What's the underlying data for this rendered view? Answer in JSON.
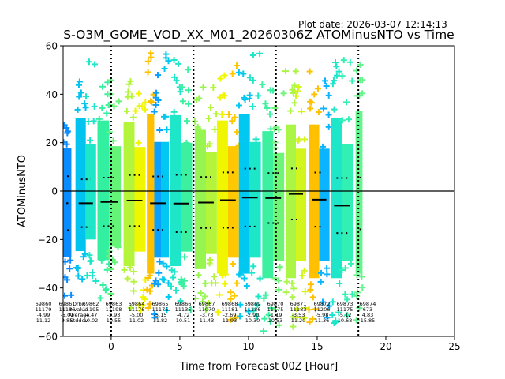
{
  "plot_date": "Plot date: 2026-03-07 12:14:13",
  "chart_data": {
    "type": "scatter",
    "title": "S-O3M_GOME_VOD_XX_M01_20260306Z ATOMinusNTO vs Time",
    "xlabel": "Time from Forecast 00Z [Hour]",
    "ylabel": "ATOMinusNTO",
    "xlim": [
      -3.5,
      25
    ],
    "ylim": [
      -60,
      60
    ],
    "xticks": [
      "0",
      "5",
      "10",
      "15",
      "20",
      "25"
    ],
    "yticks": [
      "60",
      "40",
      "20",
      "0",
      "−20",
      "−40",
      "−60"
    ],
    "marker": "+",
    "zero_line": 0,
    "forecast_boundaries": [
      0,
      6,
      12,
      18
    ],
    "stat_labels": [
      "Orbit",
      "Nvalue",
      "Average",
      "Stddev"
    ],
    "orbits": [
      {
        "orbit": "69860",
        "nvalue": "11179",
        "average": "-4.99",
        "stddev": "11.12",
        "x_start": -3.5,
        "x_end": -2.9,
        "colors": [
          "#0a8cff"
        ],
        "y_max": 32,
        "y_min": -44
      },
      {
        "orbit": "69861",
        "nvalue": "11186",
        "average": "-5.01",
        "stddev": "9.85",
        "x_start": -2.6,
        "x_end": -1.1,
        "colors": [
          "#00c3f0",
          "#1ee6c8"
        ],
        "y_max": 55,
        "y_min": -40
      },
      {
        "orbit": "69862",
        "nvalue": "11195",
        "average": "-4.47",
        "stddev": "10.02",
        "x_start": -1.0,
        "x_end": 0.7,
        "colors": [
          "#32f0a0",
          "#64f578"
        ],
        "y_max": 53,
        "y_min": -46
      },
      {
        "orbit": "69863",
        "nvalue": "11198",
        "average": "-3.93",
        "stddev": "10.55",
        "x_start": 0.9,
        "x_end": 2.5,
        "colors": [
          "#b4f53c",
          "#f0f500"
        ],
        "y_max": 52,
        "y_min": -50
      },
      {
        "orbit": "69864",
        "nvalue": "11176",
        "average": "-5.00",
        "stddev": "11.02",
        "x_start": 2.6,
        "x_end": 4.2,
        "colors": [
          "#ffc000",
          "#0aa0ff",
          "#00c8f0"
        ],
        "y_max": 58,
        "y_min": -55
      },
      {
        "orbit": "69865",
        "nvalue": "11176",
        "average": "-5.15",
        "stddev": "11.82",
        "x_start": 4.3,
        "x_end": 5.9,
        "colors": [
          "#1ee6c8",
          "#3cf0a0"
        ],
        "y_max": 57,
        "y_min": -50
      },
      {
        "orbit": "69866",
        "nvalue": "11135",
        "average": "-4.72",
        "stddev": "10.51",
        "x_start": 6.1,
        "x_end": 7.7,
        "colors": [
          "#96f550",
          "#b4f53c"
        ],
        "y_max": 46,
        "y_min": -52
      },
      {
        "orbit": "69867",
        "nvalue": "11070",
        "average": "-3.73",
        "stddev": "11.43",
        "x_start": 7.7,
        "x_end": 9.3,
        "colors": [
          "#f0f500",
          "#ffc800"
        ],
        "y_max": 53,
        "y_min": -55
      },
      {
        "orbit": "69868",
        "nvalue": "11181",
        "average": "-2.69",
        "stddev": "11.93",
        "x_start": 9.3,
        "x_end": 10.9,
        "colors": [
          "#00c8f0",
          "#1ee6c8"
        ],
        "y_max": 58,
        "y_min": -55
      },
      {
        "orbit": "69869",
        "nvalue": "11186",
        "average": "-2.90",
        "stddev": "10.30",
        "x_start": 11.0,
        "x_end": 12.6,
        "colors": [
          "#3cf0a0",
          "#6ef578"
        ],
        "y_max": 45,
        "y_min": -58
      },
      {
        "orbit": "69870",
        "nvalue": "11175",
        "average": "-1.19",
        "stddev": "10.53",
        "x_start": 12.7,
        "x_end": 14.2,
        "colors": [
          "#aaf546",
          "#d2f51e"
        ],
        "y_max": 50,
        "y_min": -58
      },
      {
        "orbit": "69871",
        "nvalue": "11183",
        "average": "-3.53",
        "stddev": "11.20",
        "x_start": 14.4,
        "x_end": 15.9,
        "colors": [
          "#ffc000",
          "#0ab4ff"
        ],
        "y_max": 50,
        "y_min": -58
      },
      {
        "orbit": "69872",
        "nvalue": "11206",
        "average": "-5.98",
        "stddev": "11.36",
        "x_start": 16.0,
        "x_end": 17.6,
        "colors": [
          "#1ee6c8",
          "#32f0b4"
        ],
        "y_max": 55,
        "y_min": -58
      },
      {
        "orbit": "69873",
        "nvalue": "11175",
        "average": "-5.12",
        "stddev": "10.68",
        "x_start": 17.8,
        "x_end": 18.3,
        "colors": [
          "#64f58c"
        ],
        "y_max": 60,
        "y_min": -55
      },
      {
        "orbit": "69874",
        "nvalue": "673",
        "average": "4.83",
        "stddev": "15.85",
        "x_start": 17.8,
        "x_end": 18.3,
        "colors": [
          "#64f58c"
        ],
        "y_max": 60,
        "y_min": -55
      }
    ]
  }
}
